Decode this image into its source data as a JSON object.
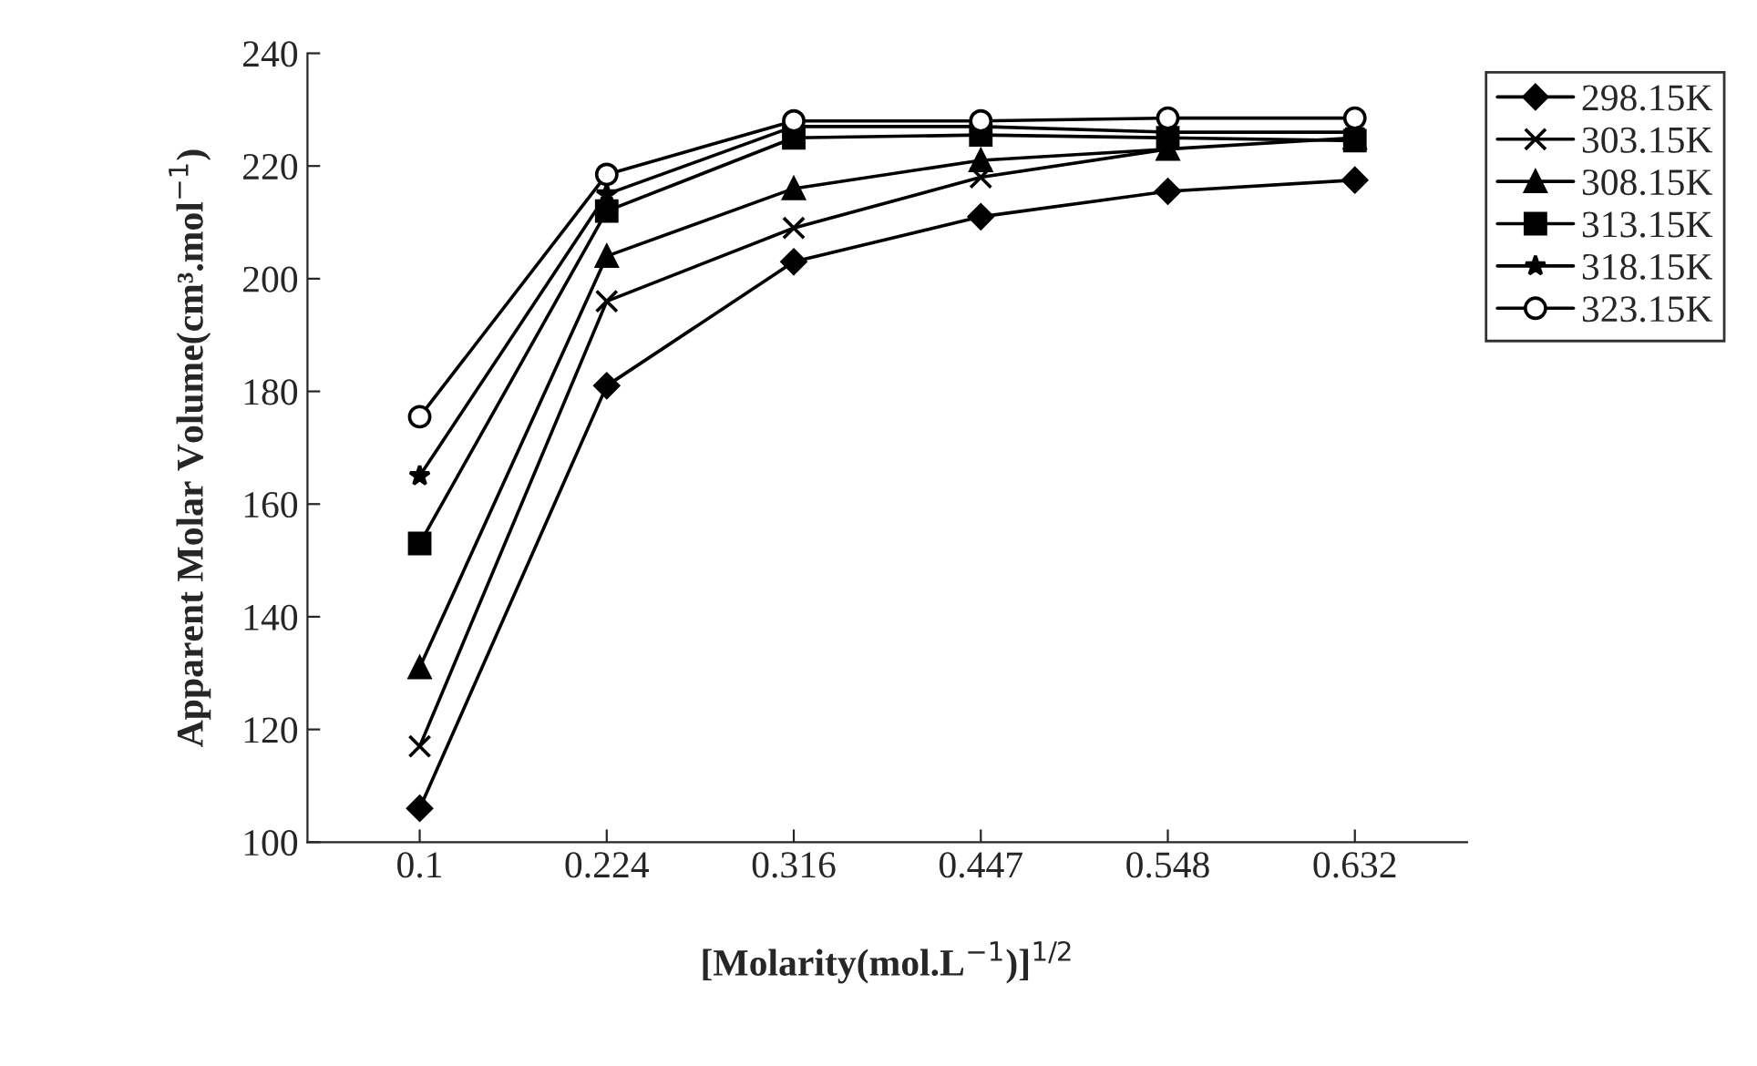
{
  "chart_data": {
    "type": "line",
    "xlabel": "[Molarity(mol.L$^{−1}$)]$^{1/2}$",
    "ylabel": "Apparent Molar Volume(cm³.mol$^{−1}$)",
    "categories": [
      "0.1",
      "0.224",
      "0.316",
      "0.447",
      "0.548",
      "0.632"
    ],
    "ylim": [
      100,
      240
    ],
    "yticks": [
      100,
      120,
      140,
      160,
      180,
      200,
      220,
      240
    ],
    "grid": false,
    "legend": "top right",
    "line_style": "solid",
    "series": [
      {
        "name": "298.15K",
        "color": "#000000",
        "marker": "diamond",
        "values": [
          106,
          181,
          203,
          211,
          215.5,
          217.5
        ]
      },
      {
        "name": "303.15K",
        "color": "#000000",
        "marker": "cross",
        "values": [
          117,
          196,
          209,
          218,
          223,
          null
        ]
      },
      {
        "name": "308.15K",
        "color": "#000000",
        "marker": "triangle",
        "values": [
          131,
          204,
          216,
          221,
          223,
          225
        ]
      },
      {
        "name": "313.15K",
        "color": "#000000",
        "marker": "square",
        "values": [
          153,
          212,
          225,
          225.5,
          225,
          224.5
        ]
      },
      {
        "name": "318.15K",
        "color": "#000000",
        "marker": "star",
        "values": [
          165,
          215,
          227,
          227,
          226,
          226
        ]
      },
      {
        "name": "323.15K",
        "color": "#000000",
        "marker": "circle",
        "values": [
          175.5,
          218.5,
          228,
          228,
          228.5,
          228.5
        ]
      }
    ]
  }
}
